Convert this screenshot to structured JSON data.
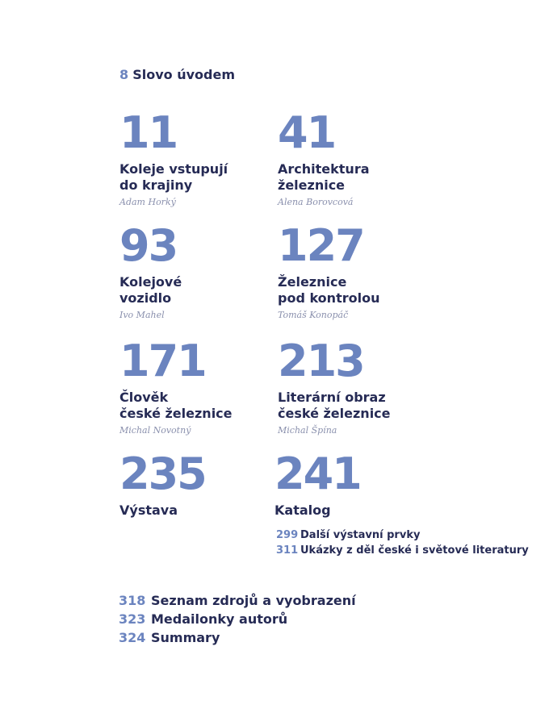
{
  "intro": {
    "page": 8,
    "title": "Slovo úvodem"
  },
  "chapters": [
    {
      "page": 11,
      "title": [
        "Koleje vstupují",
        "do krajiny"
      ],
      "author": "Adam Horký"
    },
    {
      "page": 41,
      "title": [
        "Architektura",
        "železnice"
      ],
      "author": "Alena Borovcová"
    },
    {
      "page": 93,
      "title": [
        "Kolejové",
        "vozidlo"
      ],
      "author": "Ivo Mahel"
    },
    {
      "page": 127,
      "title": [
        "Železnice",
        "pod kontrolou"
      ],
      "author": "Tomáš Konopáč"
    },
    {
      "page": 171,
      "title": [
        "Člověk",
        "české železnice"
      ],
      "author": "Michal Novotný"
    },
    {
      "page": 213,
      "title": [
        "Literární obraz",
        "české železnice"
      ],
      "author": "Michal Špína"
    },
    {
      "page": 235,
      "title": [
        "Výstava"
      ]
    },
    {
      "page": 241,
      "title": [
        "Katalog"
      ]
    }
  ],
  "catalog_entries": [
    {
      "page": 299,
      "title": "Další výstavní prvky"
    },
    {
      "page": 311,
      "title": "Ukázky z děl české i světové literatury"
    }
  ],
  "back_matter": [
    {
      "page": 318,
      "title": "Seznam zdrojů a vyobrazení"
    },
    {
      "page": 323,
      "title": "Medailonky autorů"
    },
    {
      "page": 324,
      "title": "Summary"
    }
  ]
}
